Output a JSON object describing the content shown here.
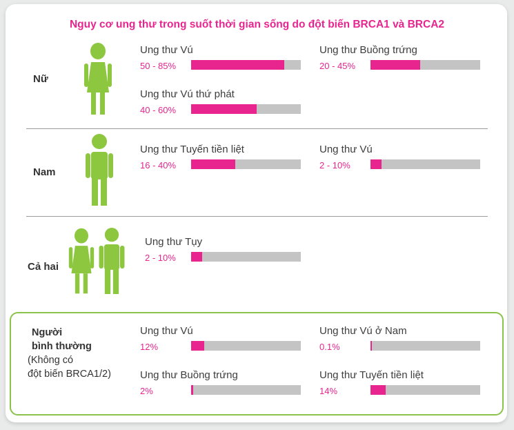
{
  "title": "Nguy cơ ung thư trong suốt thời gian sống do đột biến BRCA1 và BRCA2",
  "colors": {
    "accent": "#e8258f",
    "bar_bg": "#c4c4c4",
    "figure": "#8dc63f",
    "box_border": "#8bc34a"
  },
  "groups": {
    "female": "Nữ",
    "male": "Nam",
    "both": "Cả hai",
    "normal_l1": "Người",
    "normal_l2": "bình thường",
    "normal_l3": "(Không có",
    "normal_l4": "đột biến BRCA1/2)"
  },
  "chart_data": {
    "type": "bar",
    "title": "Nguy cơ ung thư trong suốt thời gian sống do đột biến BRCA1 và BRCA2",
    "orientation": "horizontal",
    "xlim": [
      0,
      100
    ],
    "unit": "%",
    "items": [
      {
        "group": "Nữ",
        "label": "Ung thư Vú",
        "text": "50 - 85%",
        "value": 85
      },
      {
        "group": "Nữ",
        "label": "Ung thư Buồng trứng",
        "text": "20 - 45%",
        "value": 45
      },
      {
        "group": "Nữ",
        "label": "Ung thư Vú thứ phát",
        "text": "40 - 60%",
        "value": 60
      },
      {
        "group": "Nam",
        "label": "Ung thư Tuyến tiền liệt",
        "text": "16 - 40%",
        "value": 40
      },
      {
        "group": "Nam",
        "label": "Ung thư Vú",
        "text": "2 - 10%",
        "value": 10
      },
      {
        "group": "Cả hai",
        "label": "Ung thư Tụy",
        "text": "2 - 10%",
        "value": 10
      },
      {
        "group": "Người bình thường",
        "label": "Ung thư Vú",
        "text": "12%",
        "value": 12
      },
      {
        "group": "Người bình thường",
        "label": "Ung thư Vú ở Nam",
        "text": "0.1%",
        "value": 0.1
      },
      {
        "group": "Người bình thường",
        "label": "Ung thư Buồng trứng",
        "text": "2%",
        "value": 2
      },
      {
        "group": "Người bình thường",
        "label": "Ung thư Tuyến tiền liệt",
        "text": "14%",
        "value": 14
      }
    ]
  }
}
